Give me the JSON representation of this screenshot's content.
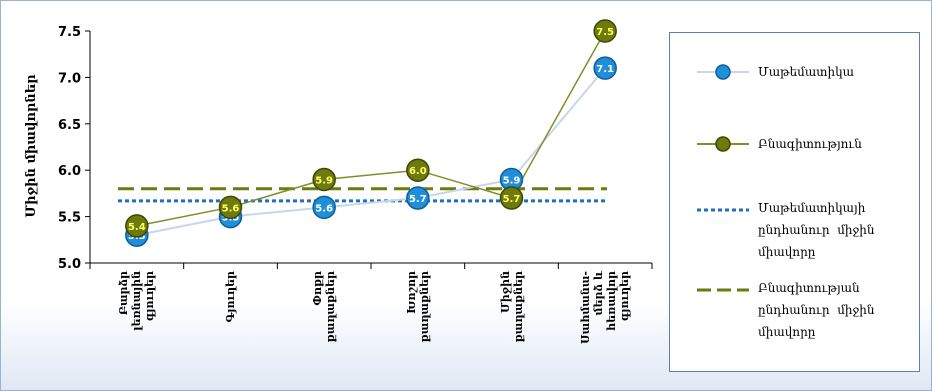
{
  "chart_data": {
    "type": "line",
    "ylabel": "Միջին միավորներ",
    "ylim": [
      5.0,
      7.5
    ],
    "yticks": [
      "5.0",
      "5.5",
      "6.0",
      "6.5",
      "7.0",
      "7.5"
    ],
    "categories": [
      "Բարձր\nլեռնային\nգյուղեր",
      "Գյուղեր",
      "Փոքր\nքաղաքներ",
      "Խոշոր\nքաղաքներ",
      "Միջին\nքաղաքներ",
      "Սահմանա-\nմերձ և\nհեռավոր\nգյուղեր"
    ],
    "series": [
      {
        "name": "Մաթեմատիկա",
        "color": "#1e8fd8",
        "line_color": "#c8d6ea",
        "values": [
          5.3,
          5.5,
          5.6,
          5.7,
          5.9,
          7.1
        ],
        "labels": [
          "5.3",
          "5.5",
          "5.6",
          "5.7",
          "5.9",
          "7.1"
        ]
      },
      {
        "name": "Բնագիտություն",
        "color": "#6e7a0c",
        "line_color": "#7f8f2a",
        "values": [
          5.4,
          5.6,
          5.9,
          6.0,
          5.7,
          7.5
        ],
        "labels": [
          "5.4",
          "5.6",
          "5.9",
          "6.0",
          "5.7",
          "7.5"
        ]
      }
    ],
    "reference_lines": [
      {
        "name": "Մաթեմատիկայի ընդհանուր միջին միավորը",
        "value": 5.67,
        "color": "#1f6fc0",
        "style": "dotted"
      },
      {
        "name": "Բնագիտության ընդհանուր միջին միավորը",
        "value": 5.8,
        "color": "#6e7a0c",
        "style": "dashed"
      }
    ],
    "legend_position": "right"
  },
  "legend": {
    "items": [
      {
        "label": "Մաթեմատիկա"
      },
      {
        "label": "Բնագիտություն"
      },
      {
        "label": "Մաթեմատիկայի\nընդհանուր  միջին\nմիավորը"
      },
      {
        "label": "Բնագիտության\nընդհանուր  միջին\nմիավորը"
      }
    ]
  }
}
